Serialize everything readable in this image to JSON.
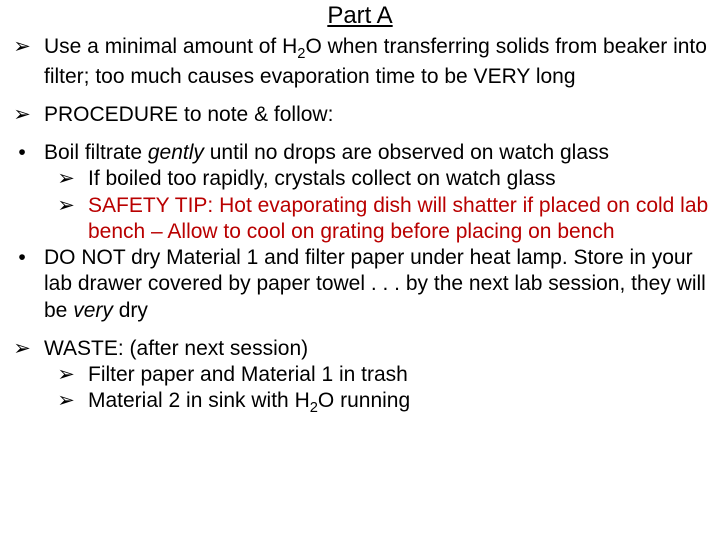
{
  "title": "Part A",
  "items": {
    "i1": {
      "bullet": "➢",
      "text_html": "Use a minimal amount of H<sub class='sub'>2</sub>O when transferring solids from beaker into filter; too much causes evaporation time to be VERY long"
    },
    "i2": {
      "bullet": "➢",
      "text": "PROCEDURE to note & follow:"
    },
    "i3": {
      "bullet": "•",
      "text_html": "Boil filtrate <span class='italic'>gently</span> until no drops are observed on watch glass",
      "subs": {
        "s1": {
          "bullet": "➢",
          "text": "If boiled too rapidly, crystals collect on watch glass"
        },
        "s2": {
          "bullet": "➢",
          "text": "SAFETY TIP:  Hot evaporating dish will shatter if placed on cold lab bench – Allow to cool on grating before placing on bench",
          "red": true
        }
      }
    },
    "i4": {
      "bullet": "•",
      "text_html": "DO NOT dry Material 1 and filter paper under heat lamp. Store in your lab drawer covered by paper towel . . . by the next lab session, they will be <span class='italic'>very</span> dry"
    },
    "i5": {
      "bullet": "➢",
      "text": "WASTE:  (after next session)",
      "subs": {
        "s1": {
          "bullet": "➢",
          "text": "Filter paper and Material 1 in trash"
        },
        "s2": {
          "bullet": "➢",
          "text_html": "Material 2 in sink with H<sub class='sub'>2</sub>O running"
        }
      }
    }
  }
}
